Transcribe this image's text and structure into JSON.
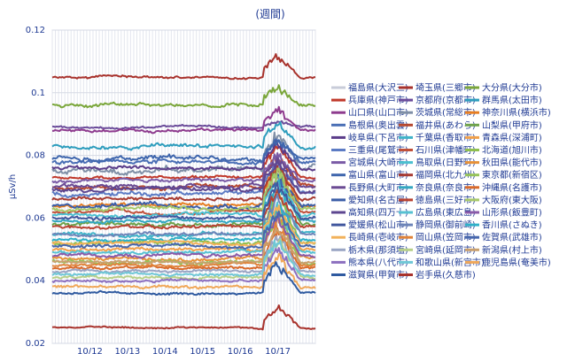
{
  "chart_data": {
    "type": "line",
    "title": "(週間)",
    "xlabel": "",
    "ylabel": "μSv/h",
    "ylim": [
      0.02,
      0.12
    ],
    "yticks": [
      "0.12",
      "0.1",
      "0.08",
      "0.06",
      "0.04",
      "0.02"
    ],
    "ytick_values": [
      0.12,
      0.1,
      0.08,
      0.06,
      0.04,
      0.02
    ],
    "xrange": [
      0,
      7
    ],
    "xticks": [
      {
        "label": "10/12",
        "x": 1
      },
      {
        "label": "10/13",
        "x": 2
      },
      {
        "label": "10/14",
        "x": 3
      },
      {
        "label": "10/15",
        "x": 4
      },
      {
        "label": "10/16",
        "x": 5
      },
      {
        "label": "10/17",
        "x": 6
      }
    ],
    "grid": true,
    "legend_position": "right",
    "series": [
      {
        "name": "福島県(大沢三)",
        "color": "#c8ccd9",
        "base": null
      },
      {
        "name": "埼玉県(三郷市)",
        "color": "#a8322c",
        "base": 0.105,
        "peak": 0.113,
        "noise": 0.0004
      },
      {
        "name": "大分県(大分市)",
        "color": "#7aa63a",
        "base": 0.096,
        "peak": 0.103,
        "noise": 0.0006
      },
      {
        "name": "兵庫県(神戸市)",
        "color": "#c0392b",
        "base": 0.073,
        "peak": 0.085,
        "noise": 0.0005
      },
      {
        "name": "京都府(京都市)",
        "color": "#6b4c9a",
        "base": 0.089,
        "peak": 0.091,
        "noise": 0.0004
      },
      {
        "name": "群馬県(太田市)",
        "color": "#2e9dbd",
        "base": 0.083,
        "peak": 0.092,
        "noise": 0.0008
      },
      {
        "name": "山口県(山口市)",
        "color": "#8e3b8e",
        "base": 0.088,
        "peak": 0.096,
        "noise": 0.0005
      },
      {
        "name": "茨城県(常総市)",
        "color": "#7f8fa6",
        "base": 0.075,
        "peak": 0.09,
        "noise": 0.0012
      },
      {
        "name": "神奈川県(横浜市)",
        "color": "#e67e22",
        "base": 0.064,
        "peak": 0.08,
        "noise": 0.0006
      },
      {
        "name": "島根県(奥出雲)",
        "color": "#4a6fb5",
        "base": 0.078,
        "peak": 0.086,
        "noise": 0.0008
      },
      {
        "name": "福井県(あわら)",
        "color": "#b5472f",
        "base": 0.07,
        "peak": 0.082,
        "noise": 0.0007
      },
      {
        "name": "山梨県(甲府市)",
        "color": "#6ea24b",
        "base": 0.058,
        "peak": 0.079,
        "noise": 0.0008
      },
      {
        "name": "岐阜県(下呂市)",
        "color": "#5b3d8a",
        "base": 0.076,
        "peak": 0.085,
        "noise": 0.0006
      },
      {
        "name": "千葉県(香取市)",
        "color": "#3fb3c9",
        "base": 0.055,
        "peak": 0.072,
        "noise": 0.0007
      },
      {
        "name": "青森県(深浦町)",
        "color": "#f0a04b",
        "base": 0.05,
        "peak": 0.066,
        "noise": 0.0006
      },
      {
        "name": "三重県(尾鷲市)",
        "color": "#5c7bc4",
        "base": 0.068,
        "peak": 0.078,
        "noise": 0.0008
      },
      {
        "name": "石川県(津幡町)",
        "color": "#c0503a",
        "base": 0.062,
        "peak": 0.076,
        "noise": 0.0006
      },
      {
        "name": "北海道(旭川市)",
        "color": "#8fbf4f",
        "base": 0.052,
        "peak": 0.07,
        "noise": 0.0007
      },
      {
        "name": "宮城県(大崎市)",
        "color": "#7b5ba6",
        "base": 0.072,
        "peak": 0.082,
        "noise": 0.0006
      },
      {
        "name": "鳥取県(日野町)",
        "color": "#4cc0d0",
        "base": 0.061,
        "peak": 0.075,
        "noise": 0.0007
      },
      {
        "name": "秋田県(能代市)",
        "color": "#e69138",
        "base": 0.047,
        "peak": 0.062,
        "noise": 0.0006
      },
      {
        "name": "富山県(富山市)",
        "color": "#3f66ad",
        "base": 0.079,
        "peak": 0.087,
        "noise": 0.0009
      },
      {
        "name": "福岡県(北九州)",
        "color": "#a83b32",
        "base": 0.066,
        "peak": 0.078,
        "noise": 0.0006
      },
      {
        "name": "東京都(新宿区)",
        "color": "#95c25a",
        "base": 0.046,
        "peak": 0.064,
        "noise": 0.0007
      },
      {
        "name": "長野県(大町市)",
        "color": "#6a4a93",
        "base": 0.07,
        "peak": 0.08,
        "noise": 0.0007
      },
      {
        "name": "奈良県(奈良市)",
        "color": "#33a7c0",
        "base": 0.059,
        "peak": 0.073,
        "noise": 0.0006
      },
      {
        "name": "沖縄県(名護市)",
        "color": "#d96a2b",
        "base": 0.044,
        "peak": 0.058,
        "noise": 0.0005
      },
      {
        "name": "愛知県(名古屋)",
        "color": "#3c5ea8",
        "base": 0.064,
        "peak": 0.075,
        "noise": 0.0008
      },
      {
        "name": "徳島県(三好市)",
        "color": "#b84232",
        "base": 0.057,
        "peak": 0.07,
        "noise": 0.0006
      },
      {
        "name": "大阪府(東大阪)",
        "color": "#a7c86a",
        "base": 0.063,
        "peak": 0.077,
        "noise": 0.0007
      },
      {
        "name": "高知県(四万十)",
        "color": "#5d4690",
        "base": 0.069,
        "peak": 0.079,
        "noise": 0.0007
      },
      {
        "name": "広島県(東広島)",
        "color": "#56c1d2",
        "base": 0.049,
        "peak": 0.065,
        "noise": 0.0006
      },
      {
        "name": "山形県(飯豊町)",
        "color": "#8a5aa8",
        "base": 0.048,
        "peak": 0.062,
        "noise": 0.0006
      },
      {
        "name": "愛媛県(松山市)",
        "color": "#41579e",
        "base": 0.06,
        "peak": 0.072,
        "noise": 0.0007
      },
      {
        "name": "静岡県(御前崎)",
        "color": "#6d84b8",
        "base": 0.055,
        "peak": 0.068,
        "noise": 0.0006
      },
      {
        "name": "香川県(さぬき)",
        "color": "#2fb0c8",
        "base": 0.053,
        "peak": 0.066,
        "noise": 0.0006
      },
      {
        "name": "長崎県(壱岐市)",
        "color": "#f2b25b",
        "base": 0.052,
        "peak": 0.066,
        "noise": 0.0006
      },
      {
        "name": "岡山県(笠岡市)",
        "color": "#e0833a",
        "base": 0.045,
        "peak": 0.06,
        "noise": 0.0005
      },
      {
        "name": "佐賀県(武雄市)",
        "color": "#4767ad",
        "base": 0.051,
        "peak": 0.064,
        "noise": 0.0006
      },
      {
        "name": "栃木県(那須塩)",
        "color": "#9aa5c4",
        "base": 0.043,
        "peak": 0.056,
        "noise": 0.0005
      },
      {
        "name": "宮崎県(延岡市)",
        "color": "#b7d08a",
        "base": 0.041,
        "peak": 0.054,
        "noise": 0.0005
      },
      {
        "name": "新潟県(村上市)",
        "color": "#c9a06e",
        "base": 0.046,
        "peak": 0.06,
        "noise": 0.0005
      },
      {
        "name": "熊本県(八代市)",
        "color": "#8c6fbf",
        "base": 0.04,
        "peak": 0.052,
        "noise": 0.0005
      },
      {
        "name": "和歌山県(新宮市)",
        "color": "#6fc7d6",
        "base": 0.042,
        "peak": 0.055,
        "noise": 0.0005
      },
      {
        "name": "鹿児島県(奄美市)",
        "color": "#f0a85a",
        "base": 0.038,
        "peak": 0.05,
        "noise": 0.0005
      },
      {
        "name": "滋賀県(甲賀市)",
        "color": "#2f5aa0",
        "base": 0.036,
        "peak": 0.047,
        "noise": 0.0004
      },
      {
        "name": "岩手県(久慈市)",
        "color": "#a8322c",
        "base": 0.025,
        "peak": 0.033,
        "noise": 0.0003
      }
    ]
  }
}
